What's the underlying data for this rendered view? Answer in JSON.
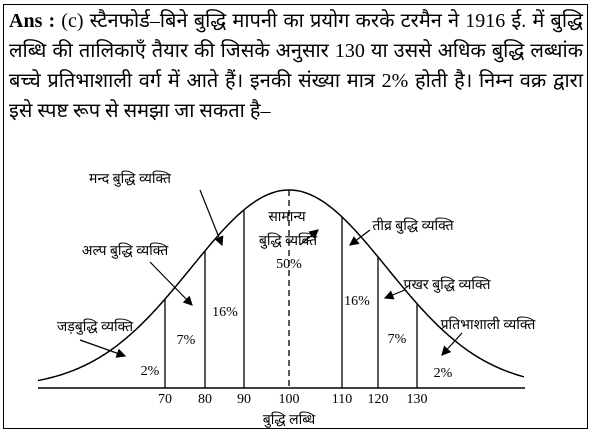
{
  "answer": {
    "label": "Ans :",
    "text": "(c) स्टैनफोर्ड–बिने बुद्धि मापनी का प्रयोग करके टरमैन ने 1916 ई. में बुद्धि लब्धि की तालिकाएँ तैयार की जिसके अनुसार 130 या उससे अधिक बुद्धि लब्धांक बच्चे प्रतिभाशाली वर्ग में आते हैं। इनकी संख्या मात्र 2% होती है। निम्न वक्र द्वारा इसे स्पष्ट रूप से समझा जा सकता है–"
  },
  "diagram": {
    "labels": [
      "मन्द बुद्धि व्यक्ति",
      "अल्प बुद्धि व्यक्ति",
      "जड़बुद्धि व्यक्ति",
      "सामान्य",
      "बुद्धि व्यक्ति",
      "तीव्र बुद्धि व्यक्ति",
      "प्रखर बुद्धि व्यक्ति",
      "प्रतिभाशाली व्यक्ति"
    ],
    "percentages": [
      "2%",
      "7%",
      "16%",
      "50%",
      "16%",
      "7%",
      "2%"
    ],
    "ticks": [
      "70",
      "80",
      "90",
      "100",
      "110",
      "120",
      "130"
    ],
    "axis_label": "बुद्धि लब्धि"
  }
}
